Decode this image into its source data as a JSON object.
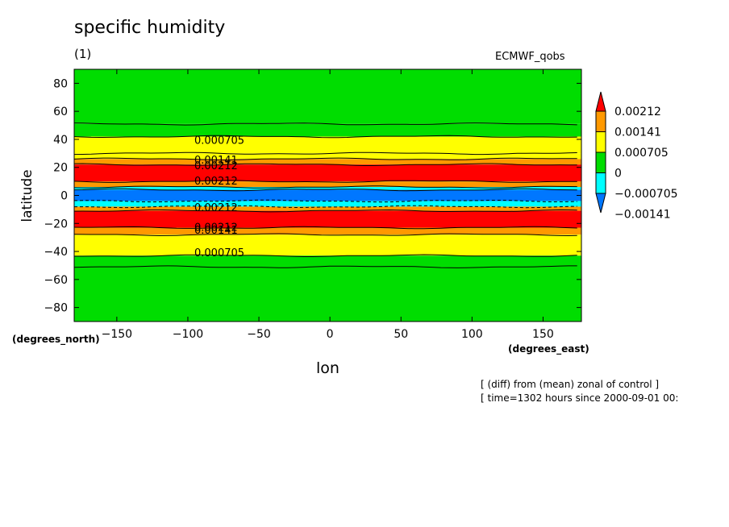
{
  "chart_data": {
    "type": "heatmap",
    "title": "specific humidity",
    "subtitle": "(1)",
    "dataset": "ECMWF_qobs",
    "xlabel": "lon",
    "ylabel": "latitude",
    "x_unit": "(degrees_east)",
    "y_unit": "(degrees_north)",
    "xlim": [
      -180,
      177
    ],
    "ylim": [
      -90,
      90
    ],
    "x_ticks": [
      -150,
      -100,
      -50,
      0,
      50,
      100,
      150
    ],
    "x_tick_labels": [
      "−150",
      "−100",
      "−50",
      "0",
      "50",
      "100",
      "150"
    ],
    "y_ticks": [
      80,
      60,
      40,
      20,
      0,
      -20,
      -40,
      -60,
      -80
    ],
    "y_tick_labels": [
      "80",
      "60",
      "40",
      "20",
      "0",
      "−20",
      "−40",
      "−60",
      "−80"
    ],
    "colorbar": {
      "levels": [
        "0.00212",
        "0.00141",
        "0.000705",
        "0",
        "−0.000705",
        "−0.00141"
      ],
      "colors": [
        "#ff0000",
        "#ff9900",
        "#ffff00",
        "#00dd00",
        "#00ffff",
        "#0077ff"
      ]
    },
    "zonal_bands": [
      {
        "lat_from": 90,
        "lat_to": 51,
        "color": "#00dd00"
      },
      {
        "lat_from": 51,
        "lat_to": 42,
        "color": "#00dd00"
      },
      {
        "lat_from": 42,
        "lat_to": 30,
        "color": "#ffff00"
      },
      {
        "lat_from": 30,
        "lat_to": 26,
        "color": "#ffff00"
      },
      {
        "lat_from": 26,
        "lat_to": 22,
        "color": "#ff9900"
      },
      {
        "lat_from": 22,
        "lat_to": 10,
        "color": "#ff0000"
      },
      {
        "lat_from": 10,
        "lat_to": 6,
        "color": "#ff9900"
      },
      {
        "lat_from": 6,
        "lat_to": 4,
        "color": "#00ffff"
      },
      {
        "lat_from": 4,
        "lat_to": -4,
        "color": "#0077ff"
      },
      {
        "lat_from": -4,
        "lat_to": -8,
        "color": "#00ffff"
      },
      {
        "lat_from": -8,
        "lat_to": -11,
        "color": "#ff9900"
      },
      {
        "lat_from": -11,
        "lat_to": -23,
        "color": "#ff0000"
      },
      {
        "lat_from": -23,
        "lat_to": -28,
        "color": "#ff9900"
      },
      {
        "lat_from": -28,
        "lat_to": -43,
        "color": "#ffff00"
      },
      {
        "lat_from": -43,
        "lat_to": -90,
        "color": "#00dd00"
      }
    ],
    "contour_lats": [
      51,
      42,
      30,
      26,
      22,
      10,
      6,
      4,
      -4,
      -8,
      -11,
      -23,
      -28,
      -43,
      -51
    ],
    "contour_labels": [
      {
        "text": "0.000705",
        "lon": -75,
        "lat": 39
      },
      {
        "text": "0.00141",
        "lon": -75,
        "lat": 25
      },
      {
        "text": "0.00212",
        "lon": -75,
        "lat": 21
      },
      {
        "text": "0.00212",
        "lon": -75,
        "lat": 10
      },
      {
        "text": "0.00212",
        "lon": -75,
        "lat": -9
      },
      {
        "text": "0.00212",
        "lon": -75,
        "lat": -23
      },
      {
        "text": "0.00141",
        "lon": -75,
        "lat": -25
      },
      {
        "text": "0.000705",
        "lon": -75,
        "lat": -41
      }
    ]
  },
  "notes": [
    "[ (diff) from (mean) zonal of control ]",
    "[ time=1302 hours since 2000-09-01 00:"
  ]
}
